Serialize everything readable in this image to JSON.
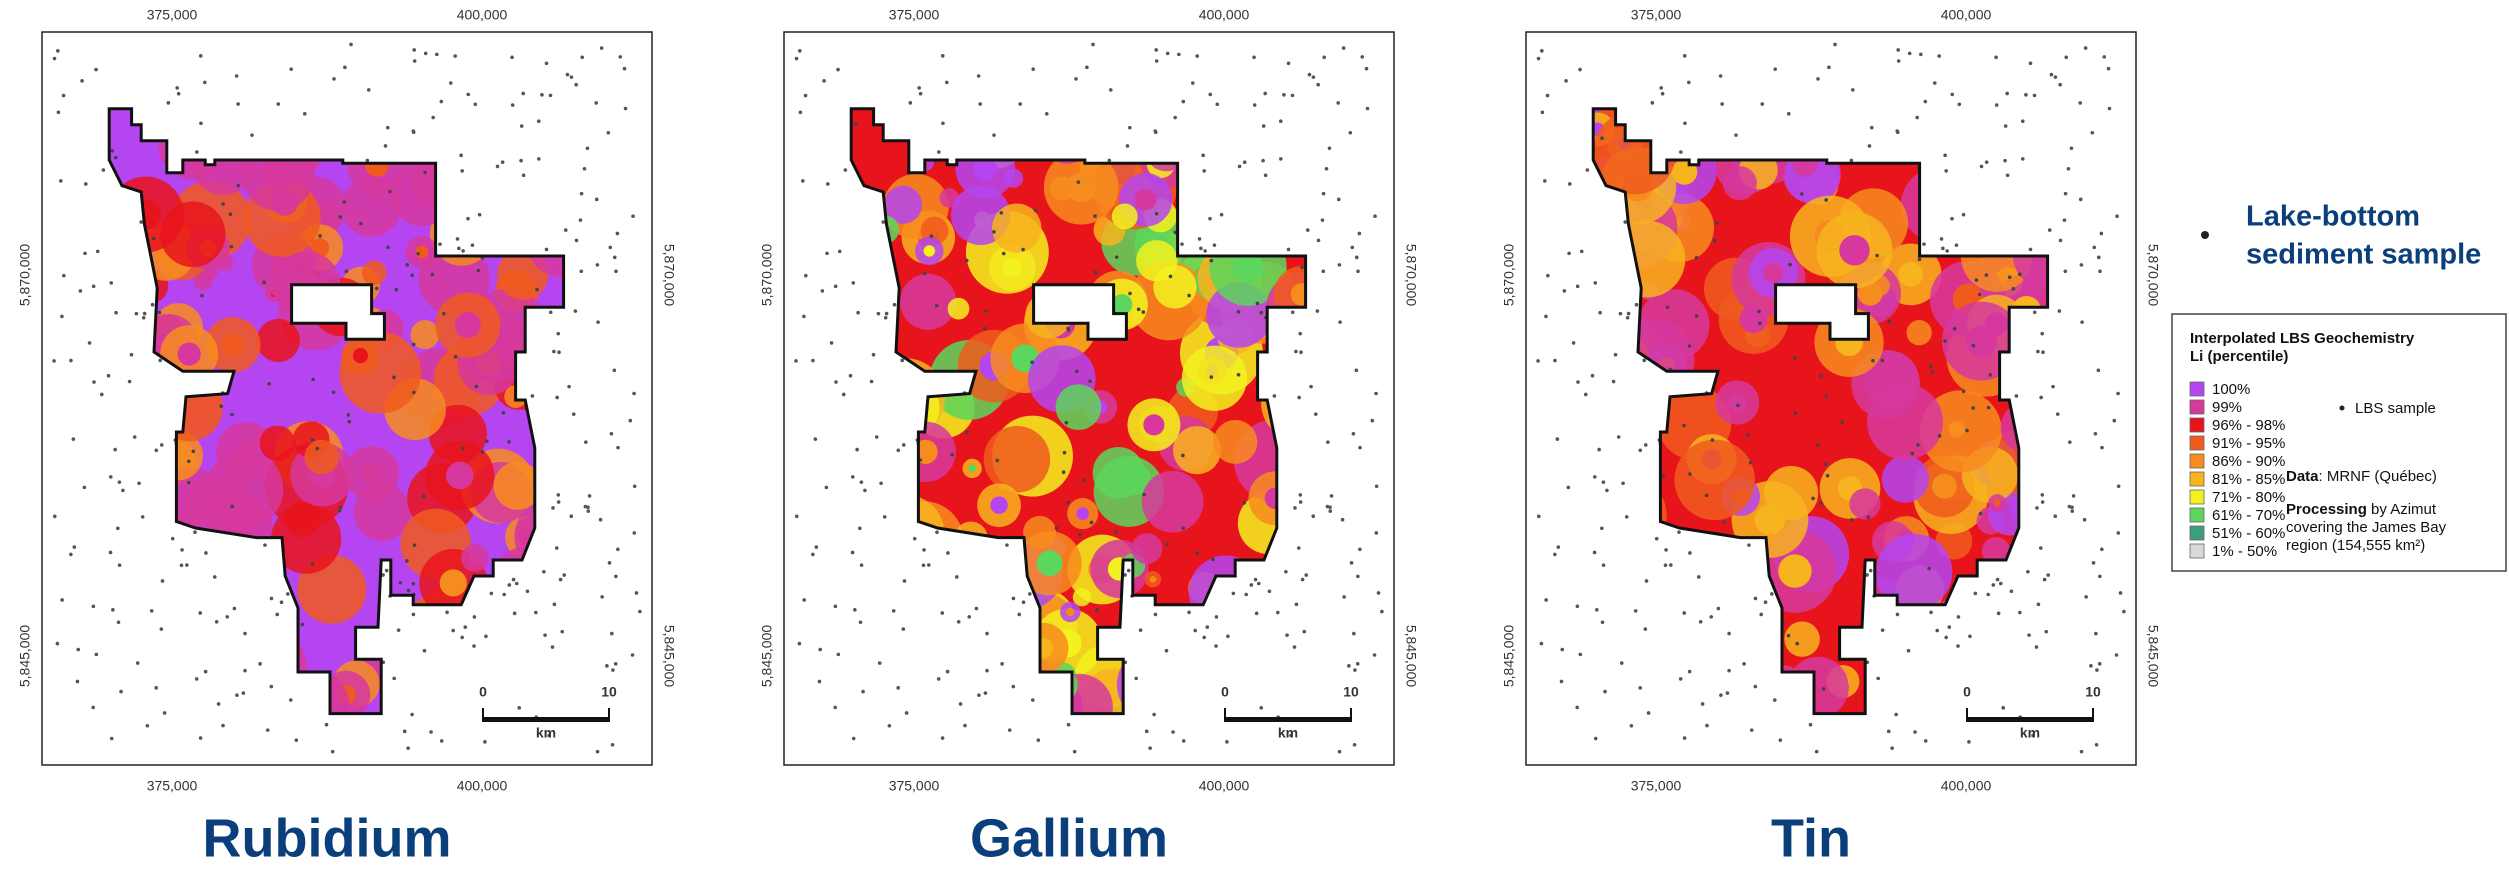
{
  "panels": [
    {
      "title": "Rubidium"
    },
    {
      "title": "Gallium"
    },
    {
      "title": "Tin"
    }
  ],
  "axes": {
    "x_labels": [
      "375,000",
      "400,000"
    ],
    "y_labels": [
      "5,870,000",
      "5,845,000"
    ]
  },
  "scale_bar": {
    "start": "0",
    "end": "10",
    "unit": "km"
  },
  "sample_note": [
    "Lake-bottom",
    "sediment sample"
  ],
  "legend": {
    "title": "Interpolated LBS Geochemistry",
    "subtitle": "Li (percentile)",
    "classes": [
      {
        "label": "100%",
        "color": "#b445f0"
      },
      {
        "label": "99%",
        "color": "#d6389e"
      },
      {
        "label": "96% - 98%",
        "color": "#e8141c"
      },
      {
        "label": "91% - 95%",
        "color": "#f05a1e"
      },
      {
        "label": "86% - 90%",
        "color": "#f78c1e"
      },
      {
        "label": "81% - 85%",
        "color": "#f7b41e"
      },
      {
        "label": "71% - 80%",
        "color": "#f2f21e"
      },
      {
        "label": "61% - 70%",
        "color": "#5cd65c"
      },
      {
        "label": "51% - 60%",
        "color": "#3f9e7a"
      },
      {
        "label": "1% - 50%",
        "color": "#d9d9d9"
      }
    ],
    "sample_label": "LBS sample",
    "data_key": "Data",
    "data_text": ": MRNF (Québec)",
    "processing_key": "Processing",
    "processing_lines": [
      " by Azimut",
      "covering the James Bay",
      "region (154,555 km²)"
    ]
  }
}
